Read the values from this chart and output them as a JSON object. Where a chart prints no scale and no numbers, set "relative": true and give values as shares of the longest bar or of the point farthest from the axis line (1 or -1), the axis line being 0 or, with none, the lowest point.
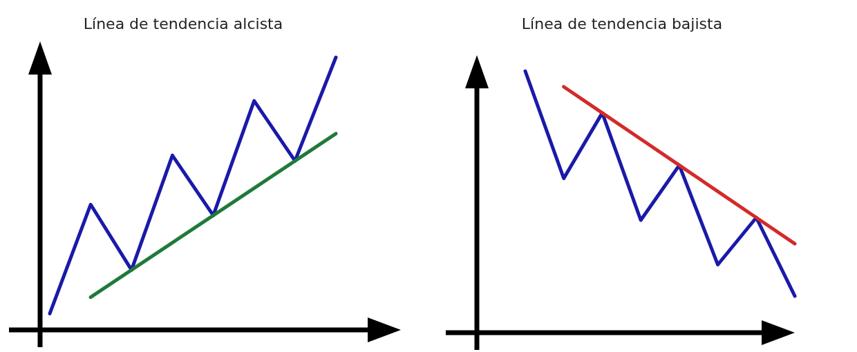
{
  "chart_data": [
    {
      "type": "line",
      "title": "Línea de tendencia alcista",
      "relative": true,
      "categories": [
        null,
        null,
        null,
        null,
        null,
        null,
        null,
        null
      ],
      "line_style": "solid",
      "series": [
        {
          "color": "#1a1aa8",
          "values": [
            0.06,
            0.46,
            0.22,
            0.64,
            0.42,
            0.84,
            0.62,
            1
          ]
        },
        {
          "color": "#1f7a3a",
          "values": [
            null,
            0.12,
            0.22,
            0.32,
            0.42,
            0.52,
            0.62,
            0.72
          ]
        }
      ]
    },
    {
      "type": "line",
      "title": "Línea de tendencia bajista",
      "relative": true,
      "categories": [
        null,
        null,
        null,
        null,
        null,
        null,
        null,
        null
      ],
      "line_style": "solid",
      "series": [
        {
          "color": "#1a1aa8",
          "values": [
            1,
            0.59,
            0.84,
            0.43,
            0.64,
            0.26,
            0.44,
            0.14
          ]
        },
        {
          "color": "#d42a2a",
          "values": [
            null,
            0.94,
            0.84,
            0.74,
            0.64,
            0.54,
            0.44,
            0.34
          ]
        }
      ]
    }
  ]
}
